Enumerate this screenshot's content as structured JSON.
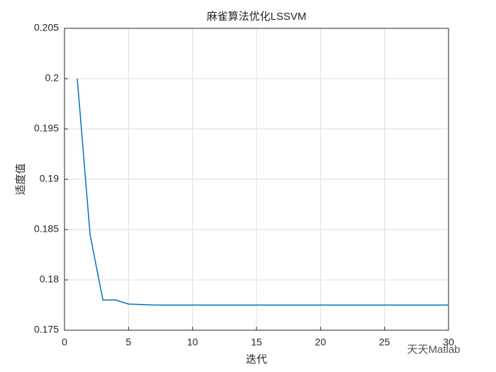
{
  "chart_data": {
    "type": "line",
    "title": "麻雀算法优化LSSVM",
    "xlabel": "迭代",
    "ylabel": "适度值",
    "x": [
      1,
      2,
      3,
      4,
      5,
      6,
      7,
      8,
      9,
      10,
      11,
      12,
      13,
      14,
      15,
      16,
      17,
      18,
      19,
      20,
      21,
      22,
      23,
      24,
      25,
      26,
      27,
      28,
      29,
      30
    ],
    "series": [
      {
        "color": "#0072bd",
        "values": [
          0.2,
          0.1845,
          0.178,
          0.178,
          0.1776,
          0.17755,
          0.1775,
          0.1775,
          0.1775,
          0.1775,
          0.1775,
          0.1775,
          0.1775,
          0.1775,
          0.1775,
          0.1775,
          0.1775,
          0.1775,
          0.1775,
          0.1775,
          0.1775,
          0.1775,
          0.1775,
          0.1775,
          0.1775,
          0.1775,
          0.1775,
          0.1775,
          0.1775,
          0.1775
        ]
      }
    ],
    "xlim": [
      0,
      30
    ],
    "xticks": [
      0,
      5,
      10,
      15,
      20,
      25,
      30
    ],
    "ylim": [
      0.175,
      0.205
    ],
    "yticks": [
      0.175,
      0.18,
      0.185,
      0.19,
      0.195,
      0.2,
      0.205
    ],
    "grid": true,
    "watermark": "天天Matlab"
  }
}
